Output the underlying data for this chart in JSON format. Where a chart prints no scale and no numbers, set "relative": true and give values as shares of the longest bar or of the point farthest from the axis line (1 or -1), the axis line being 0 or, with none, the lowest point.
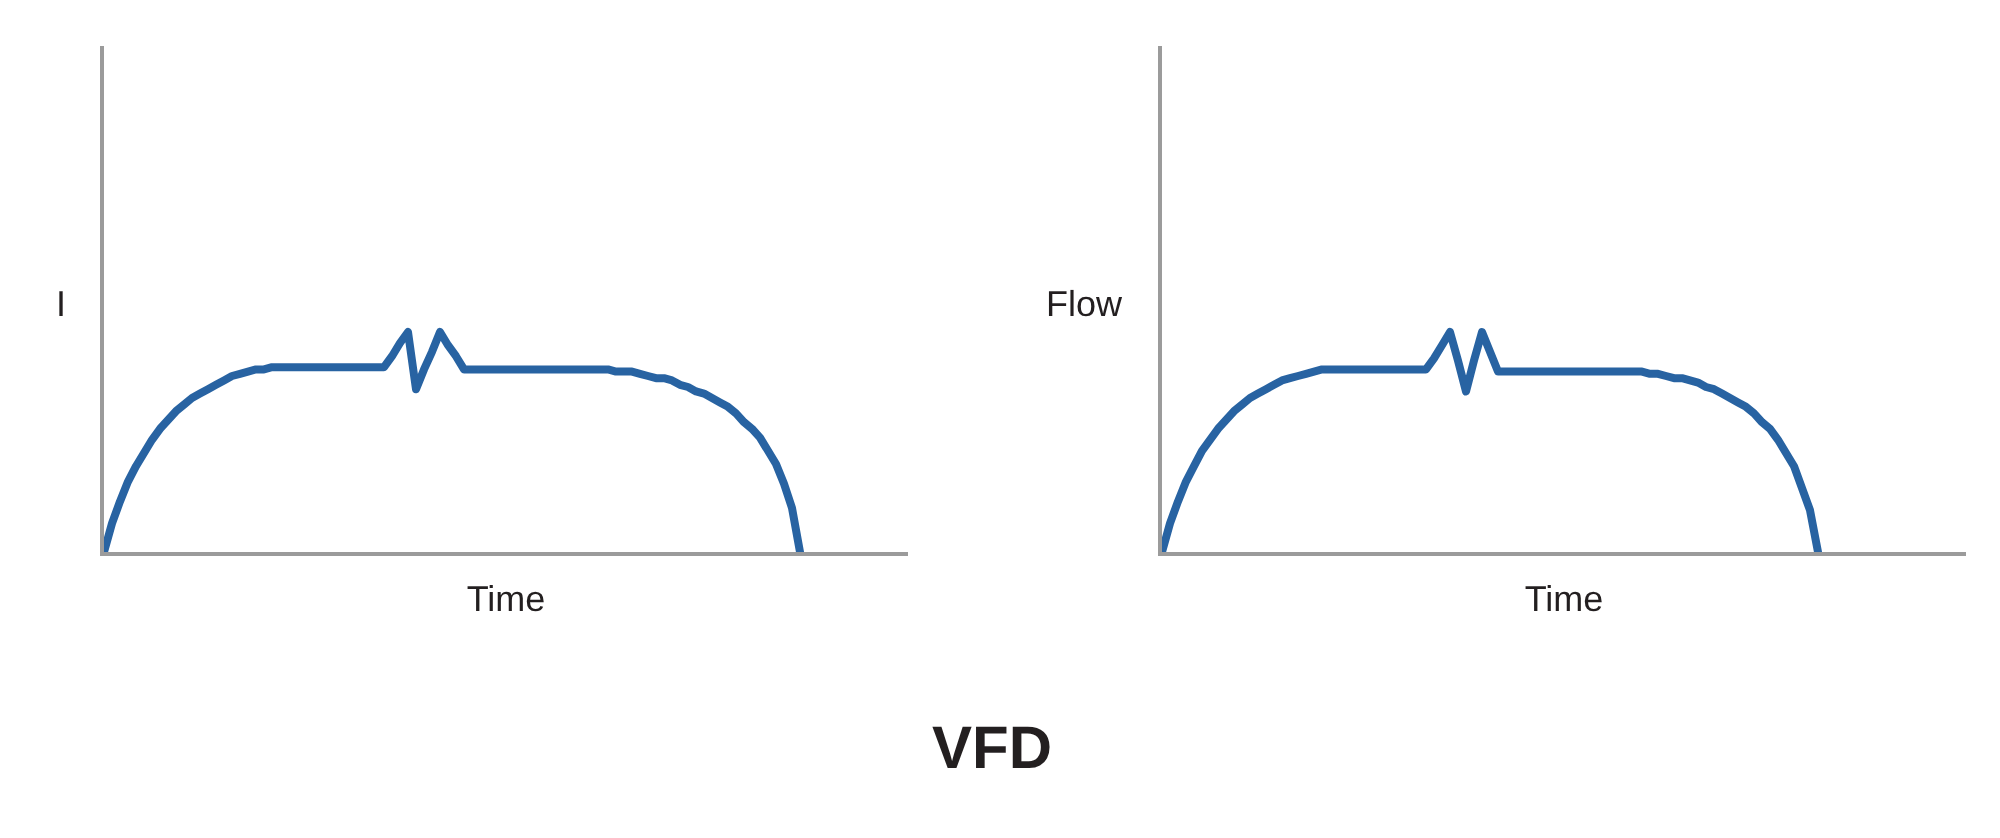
{
  "chart_data": [
    {
      "type": "line",
      "relative": true,
      "ylabel": "I",
      "xlabel": "Time",
      "line_style": "solid",
      "categories": [
        null,
        null,
        null,
        null,
        null,
        null,
        null,
        null,
        null,
        null,
        null,
        null,
        null,
        null,
        null,
        null,
        null,
        null,
        null,
        null,
        null,
        null,
        null,
        null,
        null,
        null,
        null,
        null,
        null,
        null,
        null,
        null,
        null,
        null,
        null,
        null,
        null,
        null,
        null,
        null,
        null,
        null,
        null,
        null,
        null,
        null,
        null,
        null,
        null,
        null,
        null,
        null,
        null,
        null,
        null,
        null,
        null,
        null,
        null,
        null,
        null,
        null,
        null,
        null,
        null,
        null,
        null,
        null,
        null,
        null,
        null,
        null,
        null,
        null,
        null,
        null,
        null,
        null,
        null,
        null,
        null,
        null,
        null,
        null,
        null,
        null,
        null,
        null,
        null,
        null,
        null,
        null,
        null,
        null,
        null,
        null,
        null,
        null,
        null,
        null,
        null
      ],
      "series": [
        {
          "color": "#2863a2",
          "values": [
            0,
            0.13,
            0.23,
            0.32,
            0.39,
            0.45,
            0.51,
            0.56,
            0.6,
            0.64,
            0.67,
            0.7,
            0.72,
            0.74,
            0.76,
            0.78,
            0.8,
            0.81,
            0.82,
            0.83,
            0.83,
            0.84,
            0.84,
            0.84,
            0.84,
            0.84,
            0.84,
            0.84,
            0.84,
            0.84,
            0.84,
            0.84,
            0.84,
            0.84,
            0.84,
            0.84,
            0.89,
            0.95,
            1,
            0.74,
            0.83,
            0.91,
            1,
            0.94,
            0.89,
            0.83,
            0.83,
            0.83,
            0.83,
            0.83,
            0.83,
            0.83,
            0.83,
            0.83,
            0.83,
            0.83,
            0.83,
            0.83,
            0.83,
            0.83,
            0.83,
            0.83,
            0.83,
            0.83,
            0.82,
            0.82,
            0.82,
            0.81,
            0.8,
            0.79,
            0.79,
            0.78,
            0.76,
            0.75,
            0.73,
            0.72,
            0.7,
            0.68,
            0.66,
            0.63,
            0.59,
            0.56,
            0.52,
            0.46,
            0.4,
            0.31,
            0.2,
            0,
            null,
            null,
            null,
            null,
            null,
            null,
            null,
            null,
            null,
            null,
            null,
            null,
            null
          ]
        }
      ]
    },
    {
      "type": "line",
      "relative": true,
      "ylabel": "Flow",
      "xlabel": "Time",
      "line_style": "solid",
      "categories": [
        null,
        null,
        null,
        null,
        null,
        null,
        null,
        null,
        null,
        null,
        null,
        null,
        null,
        null,
        null,
        null,
        null,
        null,
        null,
        null,
        null,
        null,
        null,
        null,
        null,
        null,
        null,
        null,
        null,
        null,
        null,
        null,
        null,
        null,
        null,
        null,
        null,
        null,
        null,
        null,
        null,
        null,
        null,
        null,
        null,
        null,
        null,
        null,
        null,
        null,
        null,
        null,
        null,
        null,
        null,
        null,
        null,
        null,
        null,
        null,
        null,
        null,
        null,
        null,
        null,
        null,
        null,
        null,
        null,
        null,
        null,
        null,
        null,
        null,
        null,
        null,
        null,
        null,
        null,
        null,
        null,
        null,
        null,
        null,
        null,
        null,
        null,
        null,
        null,
        null,
        null,
        null,
        null,
        null,
        null,
        null,
        null,
        null,
        null,
        null,
        null
      ],
      "series": [
        {
          "color": "#2863a2",
          "values": [
            0,
            0.13,
            0.23,
            0.32,
            0.39,
            0.46,
            0.51,
            0.56,
            0.6,
            0.64,
            0.67,
            0.7,
            0.72,
            0.74,
            0.76,
            0.78,
            0.79,
            0.8,
            0.81,
            0.82,
            0.83,
            0.83,
            0.83,
            0.83,
            0.83,
            0.83,
            0.83,
            0.83,
            0.83,
            0.83,
            0.83,
            0.83,
            0.83,
            0.83,
            0.88,
            0.94,
            1,
            0.87,
            0.73,
            0.87,
            1,
            0.91,
            0.82,
            0.82,
            0.82,
            0.82,
            0.82,
            0.82,
            0.82,
            0.82,
            0.82,
            0.82,
            0.82,
            0.82,
            0.82,
            0.82,
            0.82,
            0.82,
            0.82,
            0.82,
            0.82,
            0.81,
            0.81,
            0.8,
            0.79,
            0.79,
            0.78,
            0.77,
            0.75,
            0.74,
            0.72,
            0.7,
            0.68,
            0.66,
            0.63,
            0.59,
            0.56,
            0.51,
            0.45,
            0.39,
            0.29,
            0.19,
            0,
            null,
            null,
            null,
            null,
            null,
            null,
            null,
            null,
            null,
            null,
            null,
            null,
            null,
            null,
            null,
            null,
            null,
            null
          ]
        }
      ]
    },
    {
      "type": "other",
      "title": "VFD"
    }
  ]
}
